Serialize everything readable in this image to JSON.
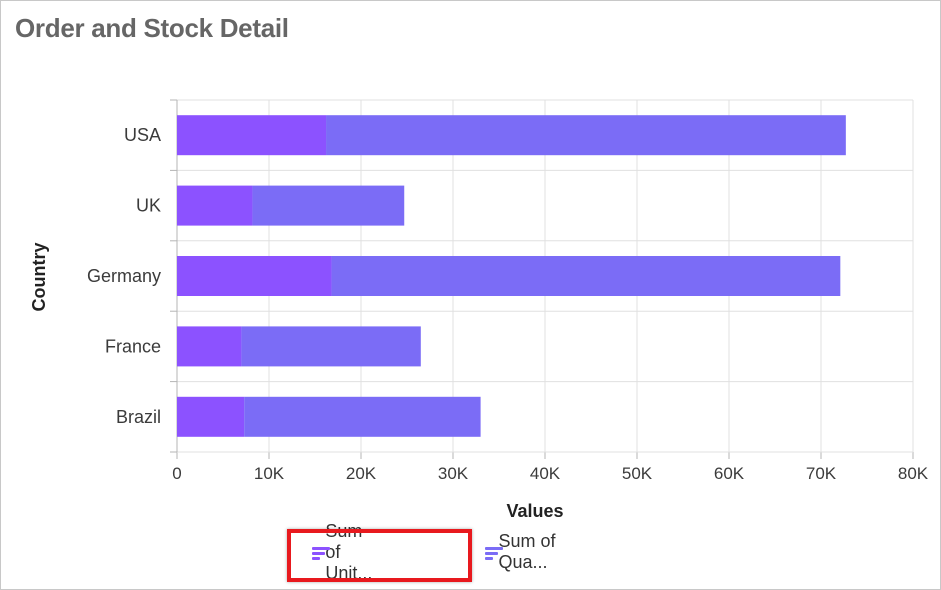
{
  "title": "Order and Stock Detail",
  "legend": {
    "items": [
      {
        "label": "Sum of Unit...",
        "color": "#8c52ff",
        "highlighted": true
      },
      {
        "label": "Sum of Qua...",
        "color": "#7b6cf6",
        "highlighted": false
      }
    ]
  },
  "highlight_color": "#e8191e",
  "chart_data": {
    "type": "bar",
    "orientation": "horizontal",
    "stacked": true,
    "categories": [
      "USA",
      "UK",
      "Germany",
      "France",
      "Brazil"
    ],
    "series": [
      {
        "name": "Sum of Unit...",
        "color": "#8c52ff",
        "values": [
          16200,
          8200,
          16800,
          7000,
          7300
        ]
      },
      {
        "name": "Sum of Qua...",
        "color": "#7b6cf6",
        "values": [
          56500,
          16500,
          55300,
          19500,
          25700
        ]
      }
    ],
    "xlabel": "Values",
    "ylabel": "Country",
    "xlim": [
      0,
      80000
    ],
    "xticks": [
      0,
      10000,
      20000,
      30000,
      40000,
      50000,
      60000,
      70000,
      80000
    ],
    "xtick_labels": [
      "0",
      "10K",
      "20K",
      "30K",
      "40K",
      "50K",
      "60K",
      "70K",
      "80K"
    ],
    "grid": true,
    "legend_position": "bottom"
  }
}
